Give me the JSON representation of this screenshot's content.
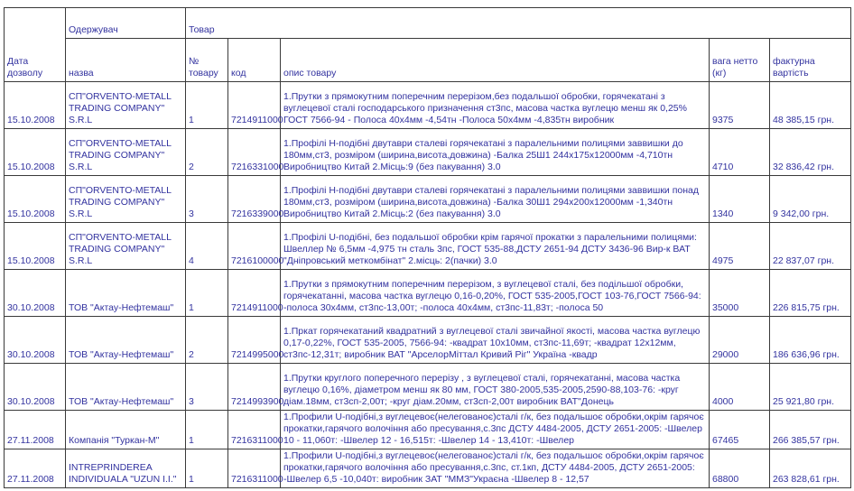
{
  "colors": {
    "text_color": "#32329f",
    "border_color": "#3a3a3a",
    "background_color": "#ffffff"
  },
  "header": {
    "date": "Дата дозволу",
    "recipient_group": "Одержувач",
    "recipient_name": "назва",
    "product_group": "Товар",
    "product_number": "№ товару",
    "code": "код",
    "description": "опис товару",
    "net_weight": "вага нетто (кг)",
    "invoice_value": "фактурна вартість"
  },
  "rows": [
    {
      "date": "15.10.2008",
      "name": "СП\"ORVENTO-METALL TRADING COMPANY\" S.R.L",
      "product_number": "1",
      "code": "7214911000",
      "description": "1.Прутки з прямокутним поперечним перерізом,без подальшої обробки, горячекатані з вуглецевої сталі господарського призначення ст3пс, масова частка вуглецю менш як 0,25% ГОСТ 7566-94 - Полоса 40х4мм -4,54тн -Полоса 50х4мм -4,835тн виробник",
      "net_weight": "9375",
      "invoice_value": "48 385,15 грн."
    },
    {
      "date": "15.10.2008",
      "name": "СП\"ORVENTO-METALL TRADING COMPANY\" S.R.L",
      "product_number": "2",
      "code": "7216331000",
      "description": "1.Профілі Н-подібні двутаври сталеві горячекатані з паралельними полицями заввишки до 180мм,ст3, розміром (ширина,висота,довжина) -Балка 25Ш1 244х175х12000мм -4,710тн Виробництво Китай 2.Місць:9 (без пакування) 3.0",
      "net_weight": "4710",
      "invoice_value": "32 836,42 грн."
    },
    {
      "date": "15.10.2008",
      "name": "СП\"ORVENTO-METALL TRADING COMPANY\" S.R.L",
      "product_number": "3",
      "code": "7216339000",
      "description": "1.Профілі Н-подібні двутаври сталеві горячекатані з паралельними полицями заввишки понад 180мм,ст3, розміром (ширина,висота,довжина) -Балка 30Ш1 294х200х12000мм -1,340тн Виробництво Китай 2.Місць:2 (без пакування) 3.0",
      "net_weight": "1340",
      "invoice_value": "9 342,00 грн."
    },
    {
      "date": "15.10.2008",
      "name": "СП\"ORVENTO-METALL TRADING COMPANY\" S.R.L",
      "product_number": "4",
      "code": "7216100000",
      "description": "1.Профілі U-подібні, без подальшої обробки крім гарячої прокатки з паралельними полицями: Швеллер № 6,5мм -4,975 тн сталь 3пс, ГОСТ 535-88,ДСТУ 2651-94 ДСТУ 3436-96 Вир-к ВАТ \"Дніпровський меткомбінат\" 2.місць: 2(пачки) 3.0",
      "net_weight": "4975",
      "invoice_value": "22 837,07 грн."
    },
    {
      "date": "30.10.2008",
      "name": "ТОВ \"Актау-Нефтемаш\"",
      "product_number": "1",
      "code": "7214911000",
      "description": "1.Прутки з прямокутним поперечним перерізом, з вуглецевої сталі, без подільшої обробки, горячекатанні, масова частка вуглецю 0,16-0,20%, ГОСТ 535-2005,ГОСТ 103-76,ГОСТ 7566-94: -полоса 30х4мм, ст3пс-13,00т; -полоса 40х4мм, ст3пс-11,83т; -полоса 50",
      "net_weight": "35000",
      "invoice_value": "226 815,75 грн."
    },
    {
      "date": "30.10.2008",
      "name": "ТОВ \"Актау-Нефтемаш\"",
      "product_number": "2",
      "code": "7214995000",
      "description": "1.Пркат горячекатаний квадратний з вуглецевої сталі звичайної якості, масова частка вуглецю 0,17-0,22%, ГОСТ 535-2005, 7566-94: -квадрат 10х10мм, ст3пс-11,69т; -квадрат 12х12мм, ст3пс-12,31т; виробник ВАТ \"АрселорМіттал Кривий Ріг\" Україна -квадр",
      "net_weight": "29000",
      "invoice_value": "186 636,96 грн."
    },
    {
      "date": "30.10.2008",
      "name": "ТОВ \"Актау-Нефтемаш\"",
      "product_number": "3",
      "code": "7214993900",
      "description": "1.Прутки круглого поперечного перерізу , з вуглецевої сталі, горячекатанні, масова частка вуглецю 0,16%, діаметром менш як 80 мм, ГОСТ 380-2005,535-2005,2590-88,103-76: -круг діам.18мм, ст3сп-2,00т; -круг діам.20мм, ст3сп-2,00т виробник ВАТ\"Донець",
      "net_weight": "4000",
      "invoice_value": "25 921,80 грн."
    },
    {
      "date": "27.11.2008",
      "name": "Компанія \"Туркан-М\"",
      "product_number": "1",
      "code": "7216311000",
      "description": "1.Профили U-подібні,з вуглецевоє(нелегованоє)сталі г/к, без подальшоє обробки,окрім гарячоє прокатки,гарячого волочіння або пресування,с.3пс ДСТУ 4484-2005, ДСТУ 2651-2005: -Швелер 10 - 11,060т: -Швелер 12 - 16,515т: -Швелер 14 - 13,410т: -Швелер",
      "net_weight": "67465",
      "invoice_value": "266 385,57 грн."
    },
    {
      "date": "27.11.2008",
      "name": "INTREPRINDEREA INDIVIDUALA \"UZUN I.I.\"",
      "product_number": "1",
      "code": "7216311000",
      "description": "1.Профили U-подібні,з вуглецевоє(нелегованоє)сталі г/к, без подальшоє обробки,окрім гарячоє прокатки,гарячого волочіння або пресування,с.3пс, ст.1кп, ДСТУ 4484-2005, ДСТУ 2651-2005: -Швелер 6,5 -10,040т: виробник ЗАТ \"ММЗ\"Украєна -Швелер 8 - 12,57",
      "net_weight": "68800",
      "invoice_value": "263 828,61 грн."
    }
  ]
}
